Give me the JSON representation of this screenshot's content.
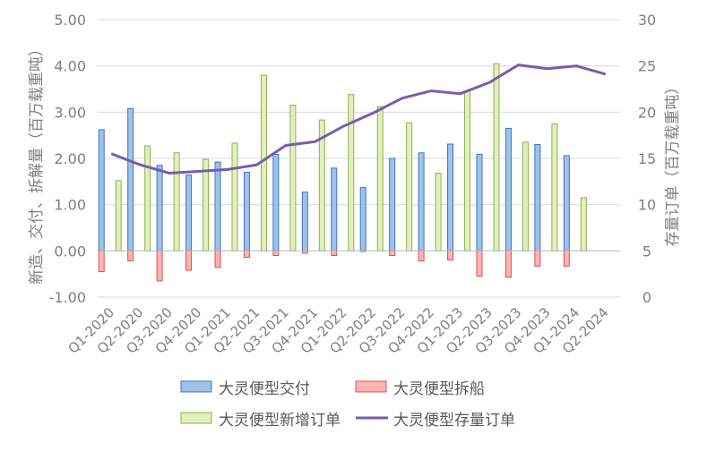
{
  "chart_data": {
    "type": "bar",
    "categories": [
      "Q1-2020",
      "Q2-2020",
      "Q3-2020",
      "Q4-2020",
      "Q1-2021",
      "Q2-2021",
      "Q3-2021",
      "Q4-2021",
      "Q1-2022",
      "Q2-2022",
      "Q3-2022",
      "Q4-2022",
      "Q1-2023",
      "Q2-2023",
      "Q3-2023",
      "Q4-2023",
      "Q1-2024",
      "Q2-2024"
    ],
    "series": [
      {
        "name": "大灵便型交付",
        "type": "bar",
        "axis": "left",
        "fill": "#9dc3e6",
        "stroke": "#4472c4",
        "values": [
          2.62,
          3.08,
          1.85,
          1.64,
          1.92,
          1.7,
          2.09,
          1.27,
          1.79,
          1.37,
          2.0,
          2.12,
          2.31,
          2.09,
          2.65,
          2.3,
          2.06,
          null
        ]
      },
      {
        "name": "大灵便型拆船",
        "type": "bar",
        "axis": "left",
        "fill": "#ffb3b3",
        "stroke": "#d9534f",
        "values": [
          -0.45,
          -0.22,
          -0.65,
          -0.42,
          -0.36,
          -0.14,
          -0.1,
          -0.05,
          -0.1,
          0,
          -0.1,
          -0.22,
          -0.2,
          -0.55,
          -0.57,
          -0.33,
          -0.33,
          null
        ]
      },
      {
        "name": "大灵便型新增订单",
        "type": "bar",
        "axis": "left",
        "fill": "#e2efc0",
        "stroke": "#8fb14a",
        "values": [
          1.52,
          2.27,
          2.12,
          1.98,
          2.33,
          3.8,
          3.15,
          2.83,
          3.38,
          3.12,
          2.77,
          1.68,
          3.46,
          4.05,
          2.35,
          2.75,
          1.15,
          null
        ]
      },
      {
        "name": "大灵便型存量订单",
        "type": "line",
        "axis": "right",
        "stroke": "#7a5ca8",
        "values": [
          15.5,
          14.3,
          13.4,
          13.6,
          13.8,
          14.3,
          16.4,
          16.8,
          18.5,
          19.9,
          21.5,
          22.3,
          22.0,
          23.2,
          25.1,
          24.7,
          25.0,
          24.1
        ]
      }
    ],
    "y_left": {
      "label": "新造、交付、拆解量（百万载重吨）",
      "min": -1,
      "max": 5,
      "step": 1,
      "ticks": [
        "-1.00",
        "0.00",
        "1.00",
        "2.00",
        "3.00",
        "4.00",
        "5.00"
      ]
    },
    "y_right": {
      "label": "存量订单（百万载重吨）",
      "min": 0,
      "max": 30,
      "step": 5,
      "ticks": [
        "0",
        "5",
        "10",
        "15",
        "20",
        "25",
        "30"
      ]
    },
    "grid": true,
    "legend": "bottom"
  },
  "style": {
    "tick_color": "#7f7f7f",
    "grid_color": "#d9d9d9"
  }
}
